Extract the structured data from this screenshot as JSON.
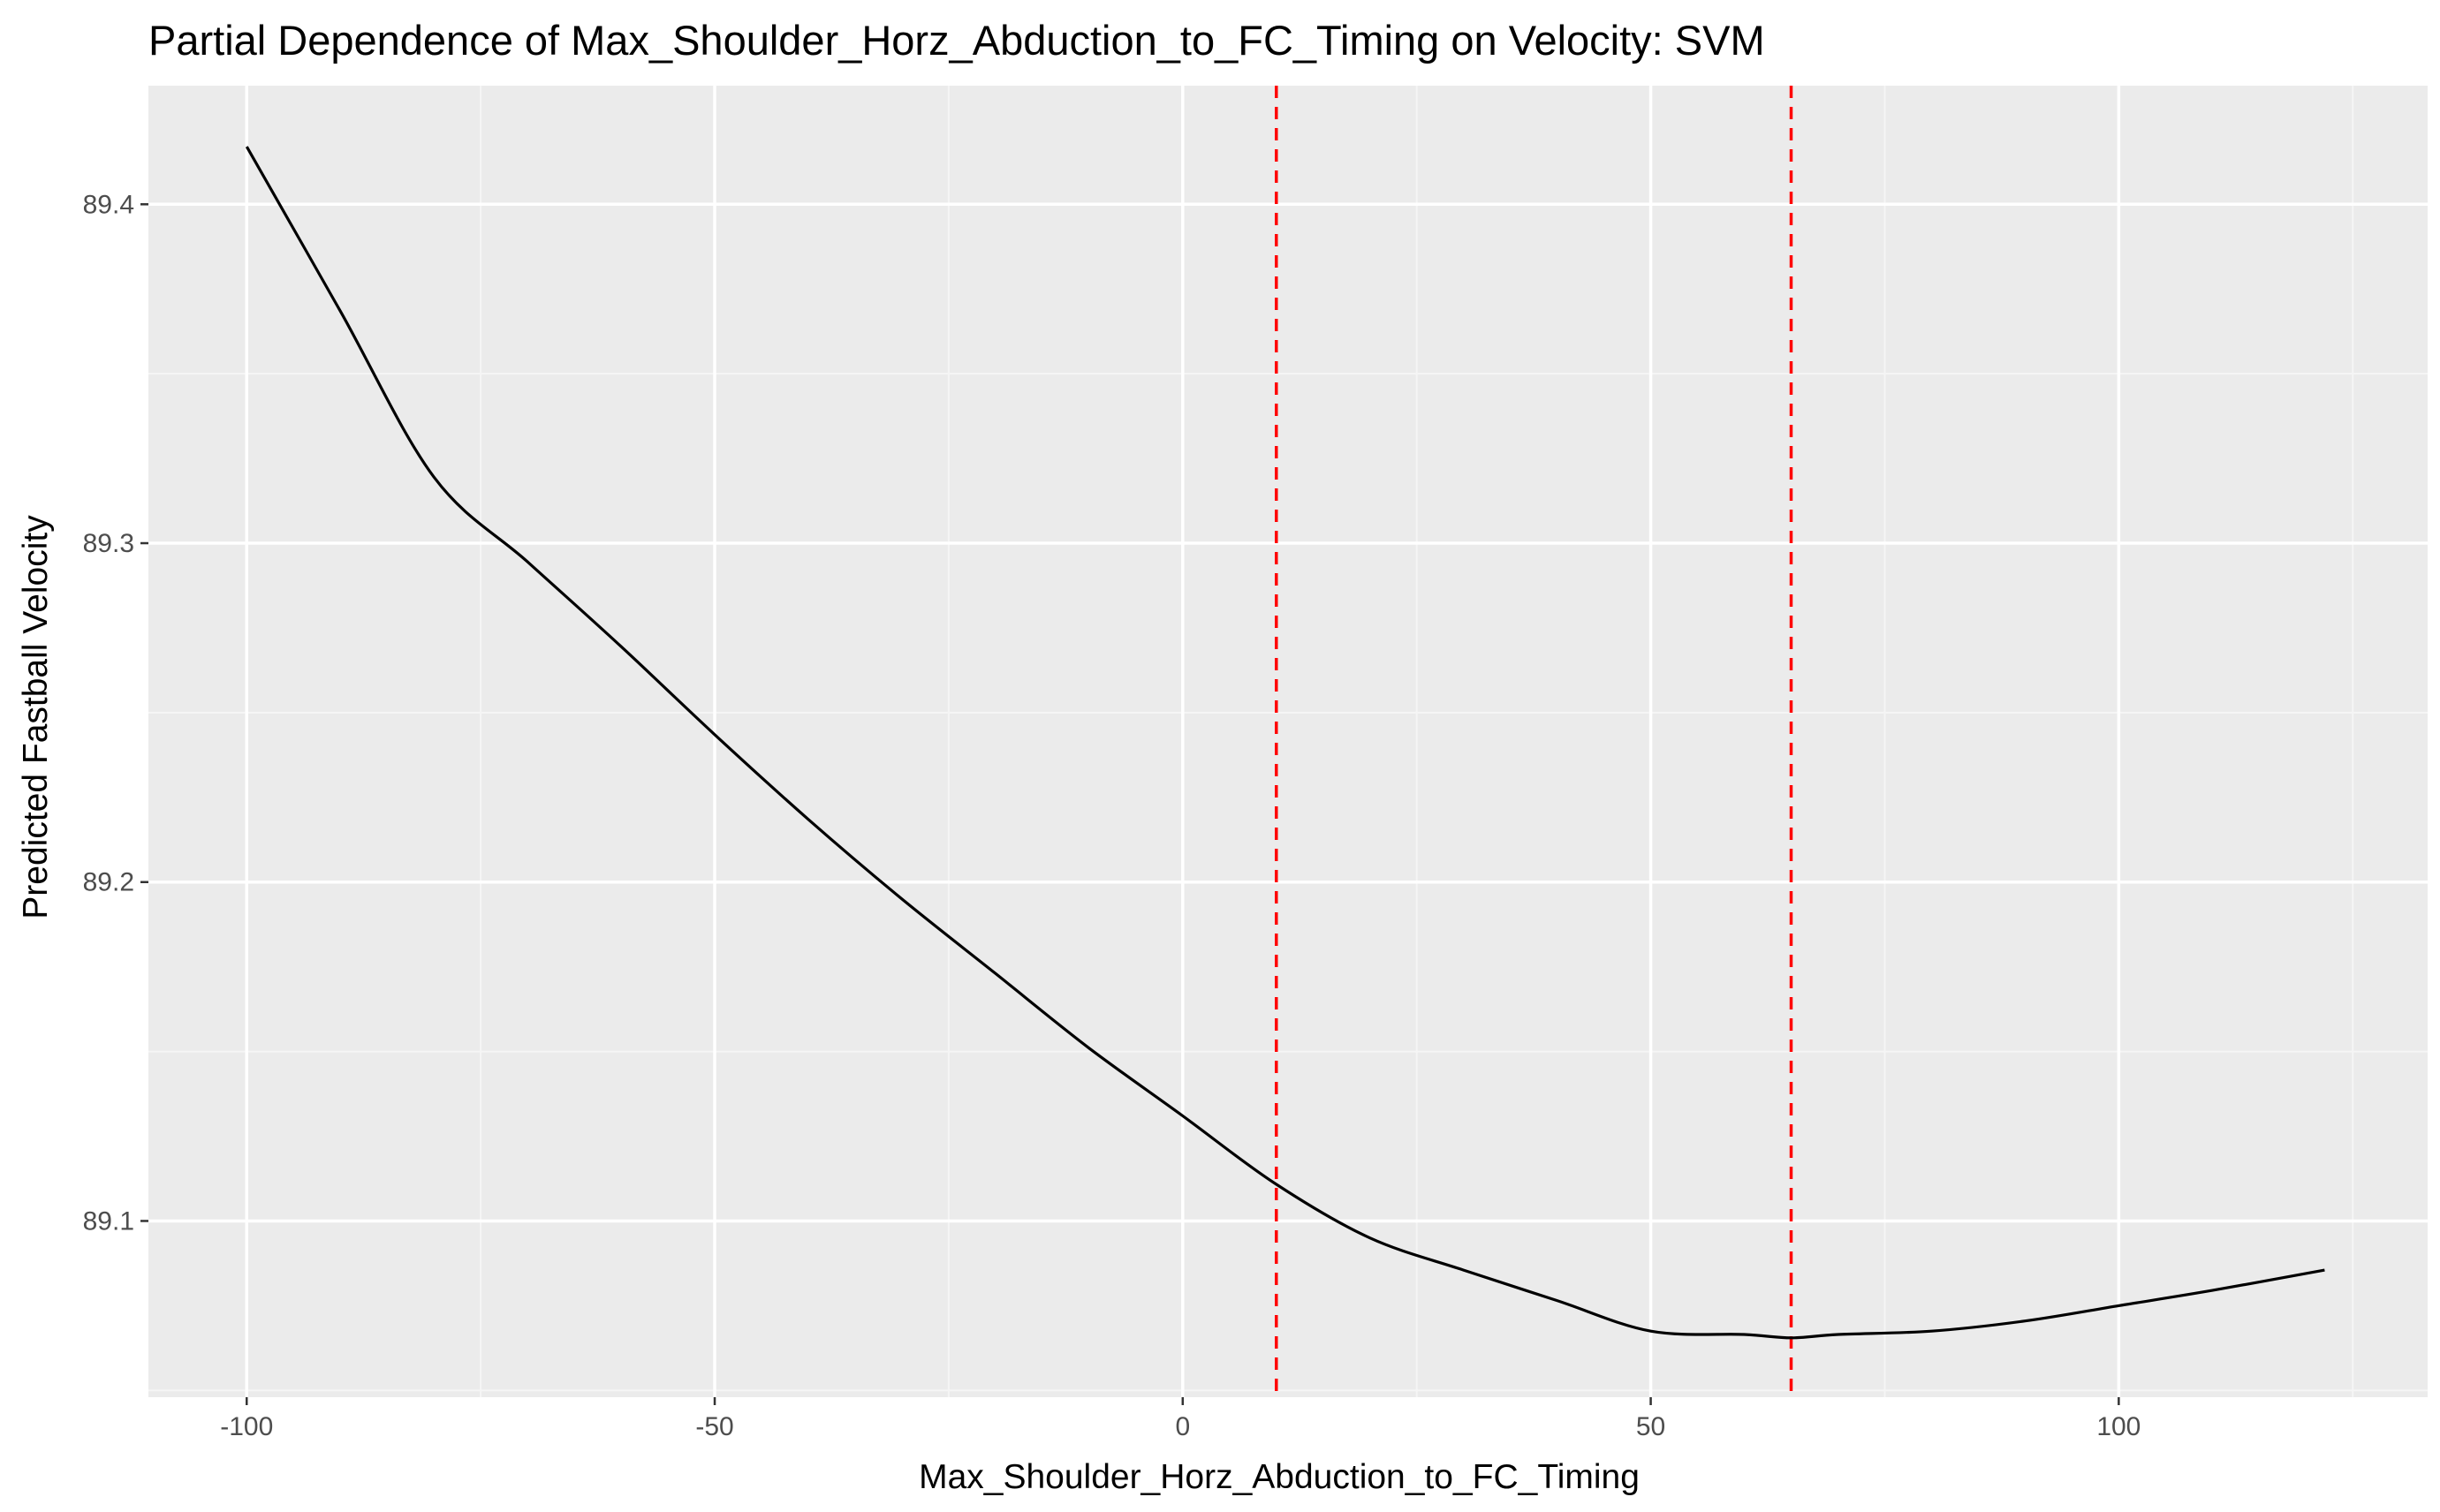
{
  "chart_data": {
    "type": "line",
    "title": "Partial Dependence of Max_Shoulder_Horz_Abduction_to_FC_Timing on Velocity: SVM",
    "xlabel": "Max_Shoulder_Horz_Abduction_to_FC_Timing",
    "ylabel": "Predicted Fastball Velocity",
    "xlim": [
      -110.5,
      133.0
    ],
    "ylim": [
      89.048,
      89.435
    ],
    "x_ticks": [
      -100,
      -50,
      0,
      50,
      100
    ],
    "x_tick_labels": [
      "-100",
      "-50",
      "0",
      "50",
      "100"
    ],
    "y_ticks": [
      89.1,
      89.2,
      89.3,
      89.4
    ],
    "y_tick_labels": [
      "89.1",
      "89.2",
      "89.3",
      "89.4"
    ],
    "x_minor_ticks": [
      -75,
      -25,
      25,
      75,
      125
    ],
    "y_minor_ticks": [
      89.05,
      89.15,
      89.25,
      89.35
    ],
    "grid": true,
    "legend": "none",
    "series": [
      {
        "color": "#000000",
        "x": [
          -100,
          -90,
          -80,
          -70,
          -60,
          -50,
          -40,
          -30,
          -20,
          -10,
          0,
          10,
          20,
          30,
          40,
          50,
          60,
          65,
          70,
          80,
          90,
          100,
          110,
          122
        ],
        "y": [
          89.417,
          89.3685,
          89.3195,
          89.2945,
          89.2695,
          89.2435,
          89.2185,
          89.195,
          89.173,
          89.151,
          89.131,
          89.1108,
          89.095,
          89.0855,
          89.0765,
          89.0675,
          89.0665,
          89.0655,
          89.0665,
          89.0675,
          89.0705,
          89.075,
          89.0795,
          89.0855
        ]
      }
    ],
    "reference_lines": {
      "orientation": "vertical",
      "style": "dashed",
      "color": "#ff0000",
      "x": [
        10,
        65
      ]
    },
    "colors": {
      "panel_background": "#ebebeb",
      "grid_major": "#ffffff",
      "grid_minor": "#f5f5f5",
      "line": "#000000",
      "reference": "#ff0000",
      "tick_label": "#4d4d4d"
    }
  }
}
